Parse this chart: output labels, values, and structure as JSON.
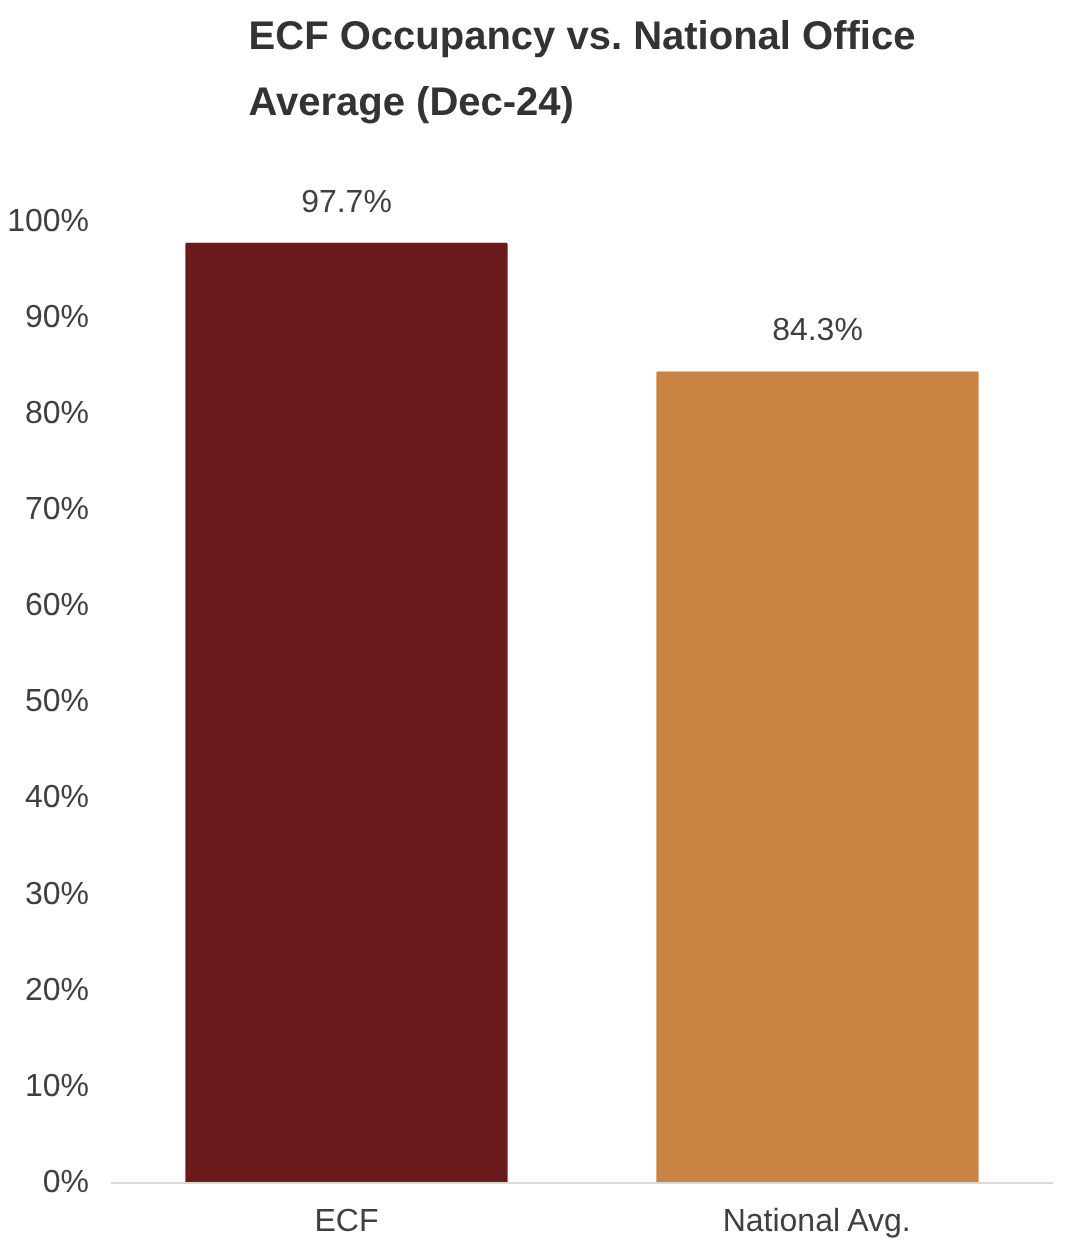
{
  "chart_data": {
    "type": "bar",
    "title": "ECF Occupancy vs. National Office\nAverage (Dec-24)",
    "categories": [
      "ECF",
      "National Avg."
    ],
    "values": [
      97.7,
      84.3
    ],
    "colors": [
      "#6b1a1c",
      "#c98341"
    ],
    "value_labels": [
      "97.7%",
      "84.3%"
    ],
    "ylim": [
      0,
      100
    ],
    "yticks": [
      {
        "value": 0,
        "label": "0%"
      },
      {
        "value": 10,
        "label": "10%"
      },
      {
        "value": 20,
        "label": "20%"
      },
      {
        "value": 30,
        "label": "30%"
      },
      {
        "value": 40,
        "label": "40%"
      },
      {
        "value": 50,
        "label": "50%"
      },
      {
        "value": 60,
        "label": "60%"
      },
      {
        "value": 70,
        "label": "70%"
      },
      {
        "value": 80,
        "label": "80%"
      },
      {
        "value": 90,
        "label": "90%"
      },
      {
        "value": 100,
        "label": "100%"
      }
    ],
    "grid": false
  }
}
